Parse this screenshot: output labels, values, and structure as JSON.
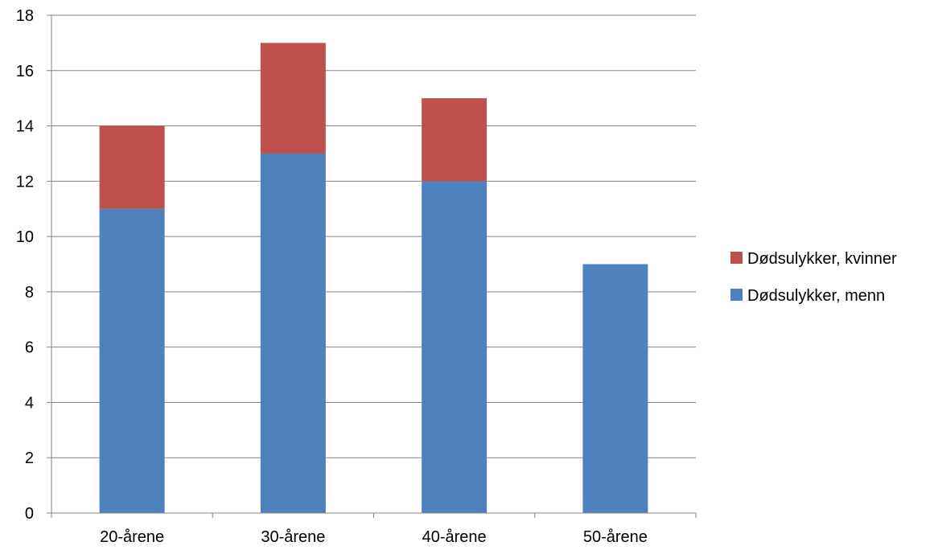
{
  "chart_data": {
    "type": "bar",
    "stacked": true,
    "categories": [
      "20-årene",
      "30-årene",
      "40-årene",
      "50-årene"
    ],
    "series": [
      {
        "name": "Dødsulykker, menn",
        "values": [
          11,
          13,
          12,
          9
        ],
        "color": "#4F81BD"
      },
      {
        "name": "Dødsulykker, kvinner",
        "values": [
          3,
          4,
          3,
          0
        ],
        "color": "#C0504D"
      }
    ],
    "yticks": [
      "0",
      "2",
      "4",
      "6",
      "8",
      "10",
      "12",
      "14",
      "16",
      "18"
    ],
    "ylim": [
      0,
      18
    ],
    "title": "",
    "xlabel": "",
    "ylabel": "",
    "grid": true,
    "legend_position": "right",
    "legend_order": [
      1,
      0
    ]
  }
}
